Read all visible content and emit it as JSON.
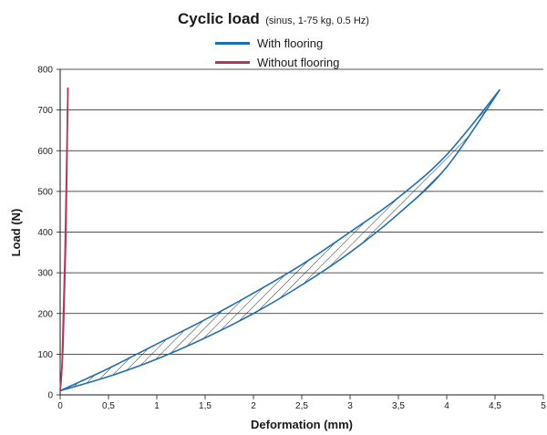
{
  "chart_data": {
    "type": "line",
    "title": "Cyclic load",
    "subtitle": "(sinus, 1-75 kg, 0.5 Hz)",
    "xlabel": "Deformation (mm)",
    "ylabel": "Load (N)",
    "xlim": [
      0,
      5
    ],
    "ylim": [
      0,
      800
    ],
    "x_ticks": [
      0,
      0.5,
      1,
      1.5,
      2,
      2.5,
      3,
      3.5,
      4,
      4.5,
      5
    ],
    "x_tick_labels": [
      "0",
      "0,5",
      "1",
      "1,5",
      "2",
      "2,5",
      "3",
      "3,5",
      "4",
      "4,5",
      "5"
    ],
    "y_ticks": [
      0,
      100,
      200,
      300,
      400,
      500,
      600,
      700,
      800
    ],
    "y_tick_labels": [
      "0",
      "100",
      "200",
      "300",
      "400",
      "500",
      "600",
      "700",
      "800"
    ],
    "grid": "horizontal",
    "legend_position": "top-center",
    "series": [
      {
        "name": "With flooring",
        "color": "#1f6fae",
        "loading_curve": [
          [
            0,
            10
          ],
          [
            0.5,
            65
          ],
          [
            1,
            125
          ],
          [
            1.5,
            185
          ],
          [
            2,
            250
          ],
          [
            2.5,
            320
          ],
          [
            3,
            400
          ],
          [
            3.5,
            485
          ],
          [
            4,
            590
          ],
          [
            4.55,
            750
          ]
        ],
        "unloading_curve": [
          [
            4.55,
            750
          ],
          [
            4,
            560
          ],
          [
            3.5,
            445
          ],
          [
            3,
            350
          ],
          [
            2.5,
            270
          ],
          [
            2,
            200
          ],
          [
            1.5,
            140
          ],
          [
            1,
            88
          ],
          [
            0.5,
            45
          ],
          [
            0,
            10
          ]
        ]
      },
      {
        "name": "Without flooring",
        "color": "#b03a55",
        "loading_curve": [
          [
            0,
            10
          ],
          [
            0.03,
            120
          ],
          [
            0.06,
            400
          ],
          [
            0.08,
            755
          ]
        ],
        "unloading_curve": [
          [
            0.08,
            755
          ],
          [
            0.05,
            350
          ],
          [
            0.02,
            80
          ],
          [
            0,
            10
          ]
        ]
      }
    ]
  }
}
